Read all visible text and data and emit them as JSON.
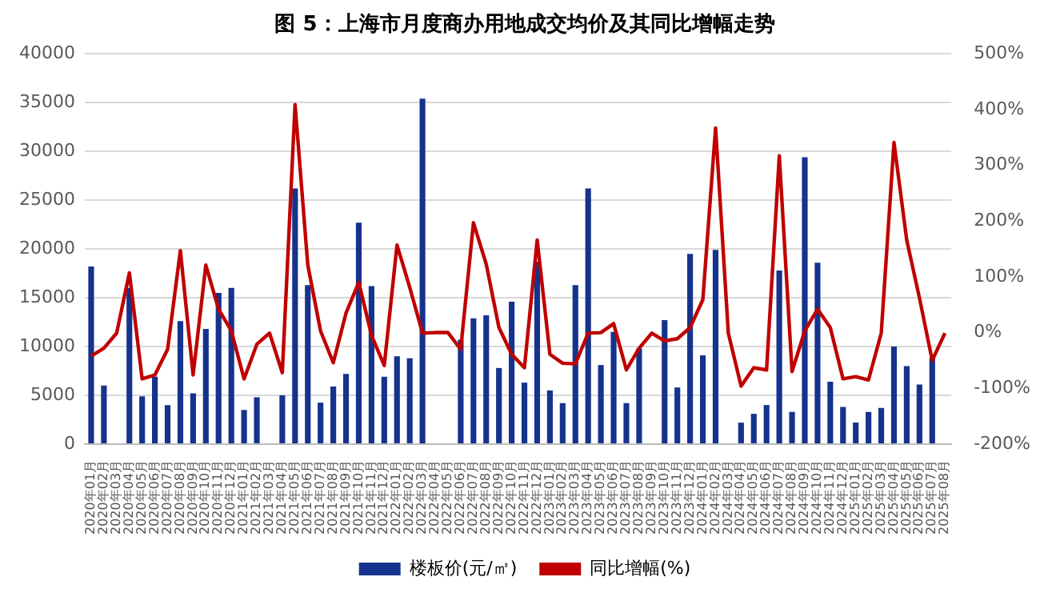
{
  "chart_data": {
    "type": "bar",
    "title": "图 5：上海市月度商办用地成交均价及其同比增幅走势",
    "categories": [
      "2020年01月",
      "2020年02月",
      "2020年03月",
      "2020年04月",
      "2020年05月",
      "2020年06月",
      "2020年07月",
      "2020年08月",
      "2020年09月",
      "2020年10月",
      "2020年11月",
      "2020年12月",
      "2021年01月",
      "2021年02月",
      "2021年03月",
      "2021年04月",
      "2021年05月",
      "2021年06月",
      "2021年07月",
      "2021年08月",
      "2021年09月",
      "2021年10月",
      "2021年11月",
      "2021年12月",
      "2022年01月",
      "2022年02月",
      "2022年03月",
      "2022年04月",
      "2022年05月",
      "2022年06月",
      "2022年07月",
      "2022年08月",
      "2022年09月",
      "2022年10月",
      "2022年11月",
      "2022年12月",
      "2023年01月",
      "2023年02月",
      "2023年03月",
      "2023年04月",
      "2023年05月",
      "2023年06月",
      "2023年07月",
      "2023年08月",
      "2023年09月",
      "2023年10月",
      "2023年11月",
      "2023年12月",
      "2024年01月",
      "2024年02月",
      "2024年03月",
      "2024年04月",
      "2024年05月",
      "2024年06月",
      "2024年07月",
      "2024年08月",
      "2024年09月",
      "2024年10月",
      "2024年11月",
      "2024年12月",
      "2025年01月",
      "2025年02月",
      "2025年03月",
      "2025年04月",
      "2025年05月",
      "2025年06月",
      "2025年07月",
      "2025年08月"
    ],
    "series": [
      {
        "name": "楼板价(元/㎡)",
        "color": "#15338c",
        "values": [
          18200,
          6000,
          null,
          16000,
          4900,
          6900,
          4000,
          12600,
          5200,
          11800,
          15500,
          16000,
          3500,
          4800,
          null,
          5000,
          26200,
          16300,
          4250,
          5900,
          7200,
          22700,
          16200,
          6900,
          9000,
          8800,
          35400,
          null,
          null,
          10700,
          12900,
          13200,
          7800,
          14600,
          6300,
          18700,
          5500,
          4200,
          16300,
          26200,
          8100,
          11500,
          4200,
          9800,
          null,
          12700,
          5800,
          19500,
          9100,
          19900,
          null,
          2200,
          3100,
          4000,
          17800,
          3300,
          29400,
          18600,
          6400,
          3800,
          2200,
          3300,
          3700,
          10000,
          8000,
          6100,
          8800,
          null
        ]
      },
      {
        "name": "同比增幅(%)",
        "type": "line",
        "axis": "y2",
        "color": "#c00000",
        "values": [
          -42,
          -28,
          -1,
          107,
          -83,
          -76,
          -30,
          147,
          -76,
          121,
          42,
          3,
          -83,
          -21,
          -1,
          -72,
          409,
          121,
          3,
          -54,
          35,
          90,
          -5,
          -59,
          157,
          81,
          -1,
          0,
          0,
          -30,
          197,
          123,
          9,
          -39,
          -63,
          166,
          -39,
          -55,
          -56,
          -1,
          0,
          16,
          -67,
          -28,
          -1,
          -15,
          -11,
          9,
          59,
          367,
          -1,
          -96,
          -63,
          -67,
          317,
          -70,
          3,
          42,
          9,
          -83,
          -79,
          -85,
          -1,
          341,
          166,
          62,
          -50,
          -1
        ]
      }
    ],
    "ylim": [
      0,
      40000
    ],
    "yticks": [
      0,
      5000,
      10000,
      15000,
      20000,
      25000,
      30000,
      35000,
      40000
    ],
    "y2lim": [
      -200,
      500
    ],
    "y2ticks": [
      {
        "value": -200,
        "label": "-200%"
      },
      {
        "value": -100,
        "label": "-100%"
      },
      {
        "value": 0,
        "label": "0%"
      },
      {
        "value": 100,
        "label": "100%"
      },
      {
        "value": 200,
        "label": "200%"
      },
      {
        "value": 300,
        "label": "300%"
      },
      {
        "value": 400,
        "label": "400%"
      },
      {
        "value": 500,
        "label": "500%"
      }
    ],
    "grid": "y",
    "legend": "bottom",
    "marker": "none",
    "line_style": "solid"
  }
}
